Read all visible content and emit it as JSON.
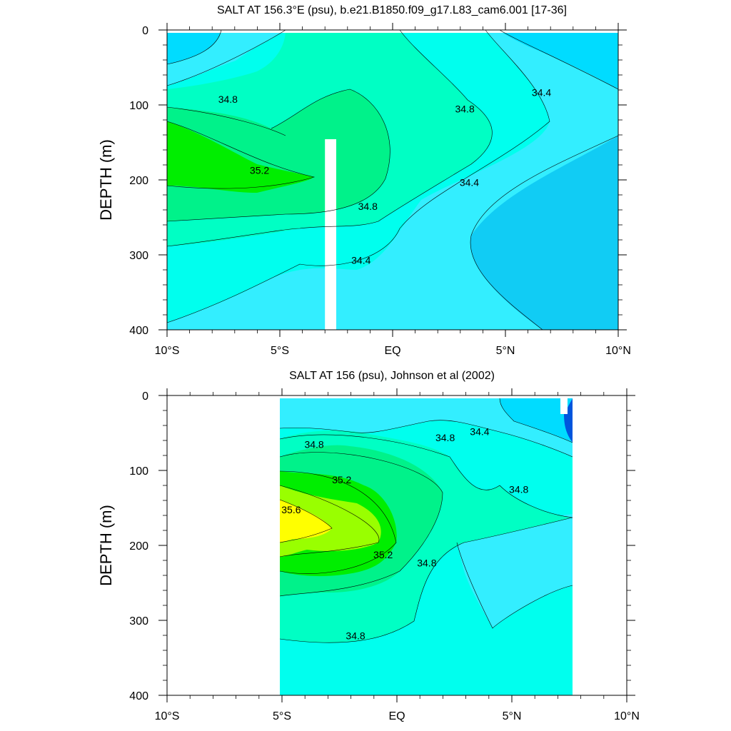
{
  "palette": {
    "lt34.2": "#11ccf4",
    "34.2-34.4": "#00dcff",
    "34.4-34.6": "#33eeff",
    "34.6-34.8": "#00ffee",
    "34.8-35.0": "#00ffc4",
    "35.0-35.2": "#00f28a",
    "35.2-35.4": "#00ee00",
    "35.4-35.6": "#99ff00",
    "gt35.6": "#ffff00",
    "deep": "#0055dd"
  },
  "chart_data": [
    {
      "type": "heatmap",
      "title": "SALT AT 156.3°E (psu), b.e21.B1850.f09_g17.L83_cam6.001 [17-36]",
      "ylabel": "DEPTH (m)",
      "xlim": [
        -10,
        10
      ],
      "ylim": [
        400,
        0
      ],
      "x_ticks": [
        {
          "v": -10,
          "label": "10°S"
        },
        {
          "v": -5,
          "label": "5°S"
        },
        {
          "v": 0,
          "label": "EQ"
        },
        {
          "v": 5,
          "label": "5°N"
        },
        {
          "v": 10,
          "label": "10°N"
        }
      ],
      "y_ticks": [
        0,
        100,
        200,
        300,
        400
      ],
      "data_extent": [
        -10,
        10
      ],
      "missing_columns": [
        [
          -3,
          -2.5
        ]
      ],
      "contour_labels": [
        {
          "text": "34.8",
          "x": -7.3,
          "y": 97
        },
        {
          "text": "35.2",
          "x": -5.9,
          "y": 192
        },
        {
          "text": "34.8",
          "x": -1.1,
          "y": 240
        },
        {
          "text": "34.4",
          "x": -1.4,
          "y": 312
        },
        {
          "text": "34.8",
          "x": 3.2,
          "y": 110
        },
        {
          "text": "34.4",
          "x": 6.6,
          "y": 88
        },
        {
          "text": "34.4",
          "x": 3.4,
          "y": 208
        }
      ]
    },
    {
      "type": "heatmap",
      "title": "SALT AT 156 (psu), Johnson et al (2002)",
      "ylabel": "DEPTH (m)",
      "xlim": [
        -10,
        10
      ],
      "ylim": [
        400,
        0
      ],
      "x_ticks": [
        {
          "v": -10,
          "label": "10°S"
        },
        {
          "v": -5,
          "label": "5°S"
        },
        {
          "v": 0,
          "label": "EQ"
        },
        {
          "v": 5,
          "label": "5°N"
        },
        {
          "v": 10,
          "label": "10°N"
        }
      ],
      "y_ticks": [
        0,
        100,
        200,
        300,
        400
      ],
      "data_extent": [
        -5,
        8
      ],
      "missing_columns": [],
      "contour_labels": [
        {
          "text": "34.8",
          "x": -3.6,
          "y": 70
        },
        {
          "text": "35.2",
          "x": -2.4,
          "y": 117
        },
        {
          "text": "35.6",
          "x": -4.6,
          "y": 157
        },
        {
          "text": "35.2",
          "x": -0.6,
          "y": 217
        },
        {
          "text": "34.8",
          "x": 1.3,
          "y": 228
        },
        {
          "text": "34.8",
          "x": 2.1,
          "y": 61
        },
        {
          "text": "34.4",
          "x": 3.6,
          "y": 53
        },
        {
          "text": "34.8",
          "x": 5.3,
          "y": 130
        },
        {
          "text": "34.8",
          "x": -1.8,
          "y": 325
        }
      ]
    }
  ]
}
